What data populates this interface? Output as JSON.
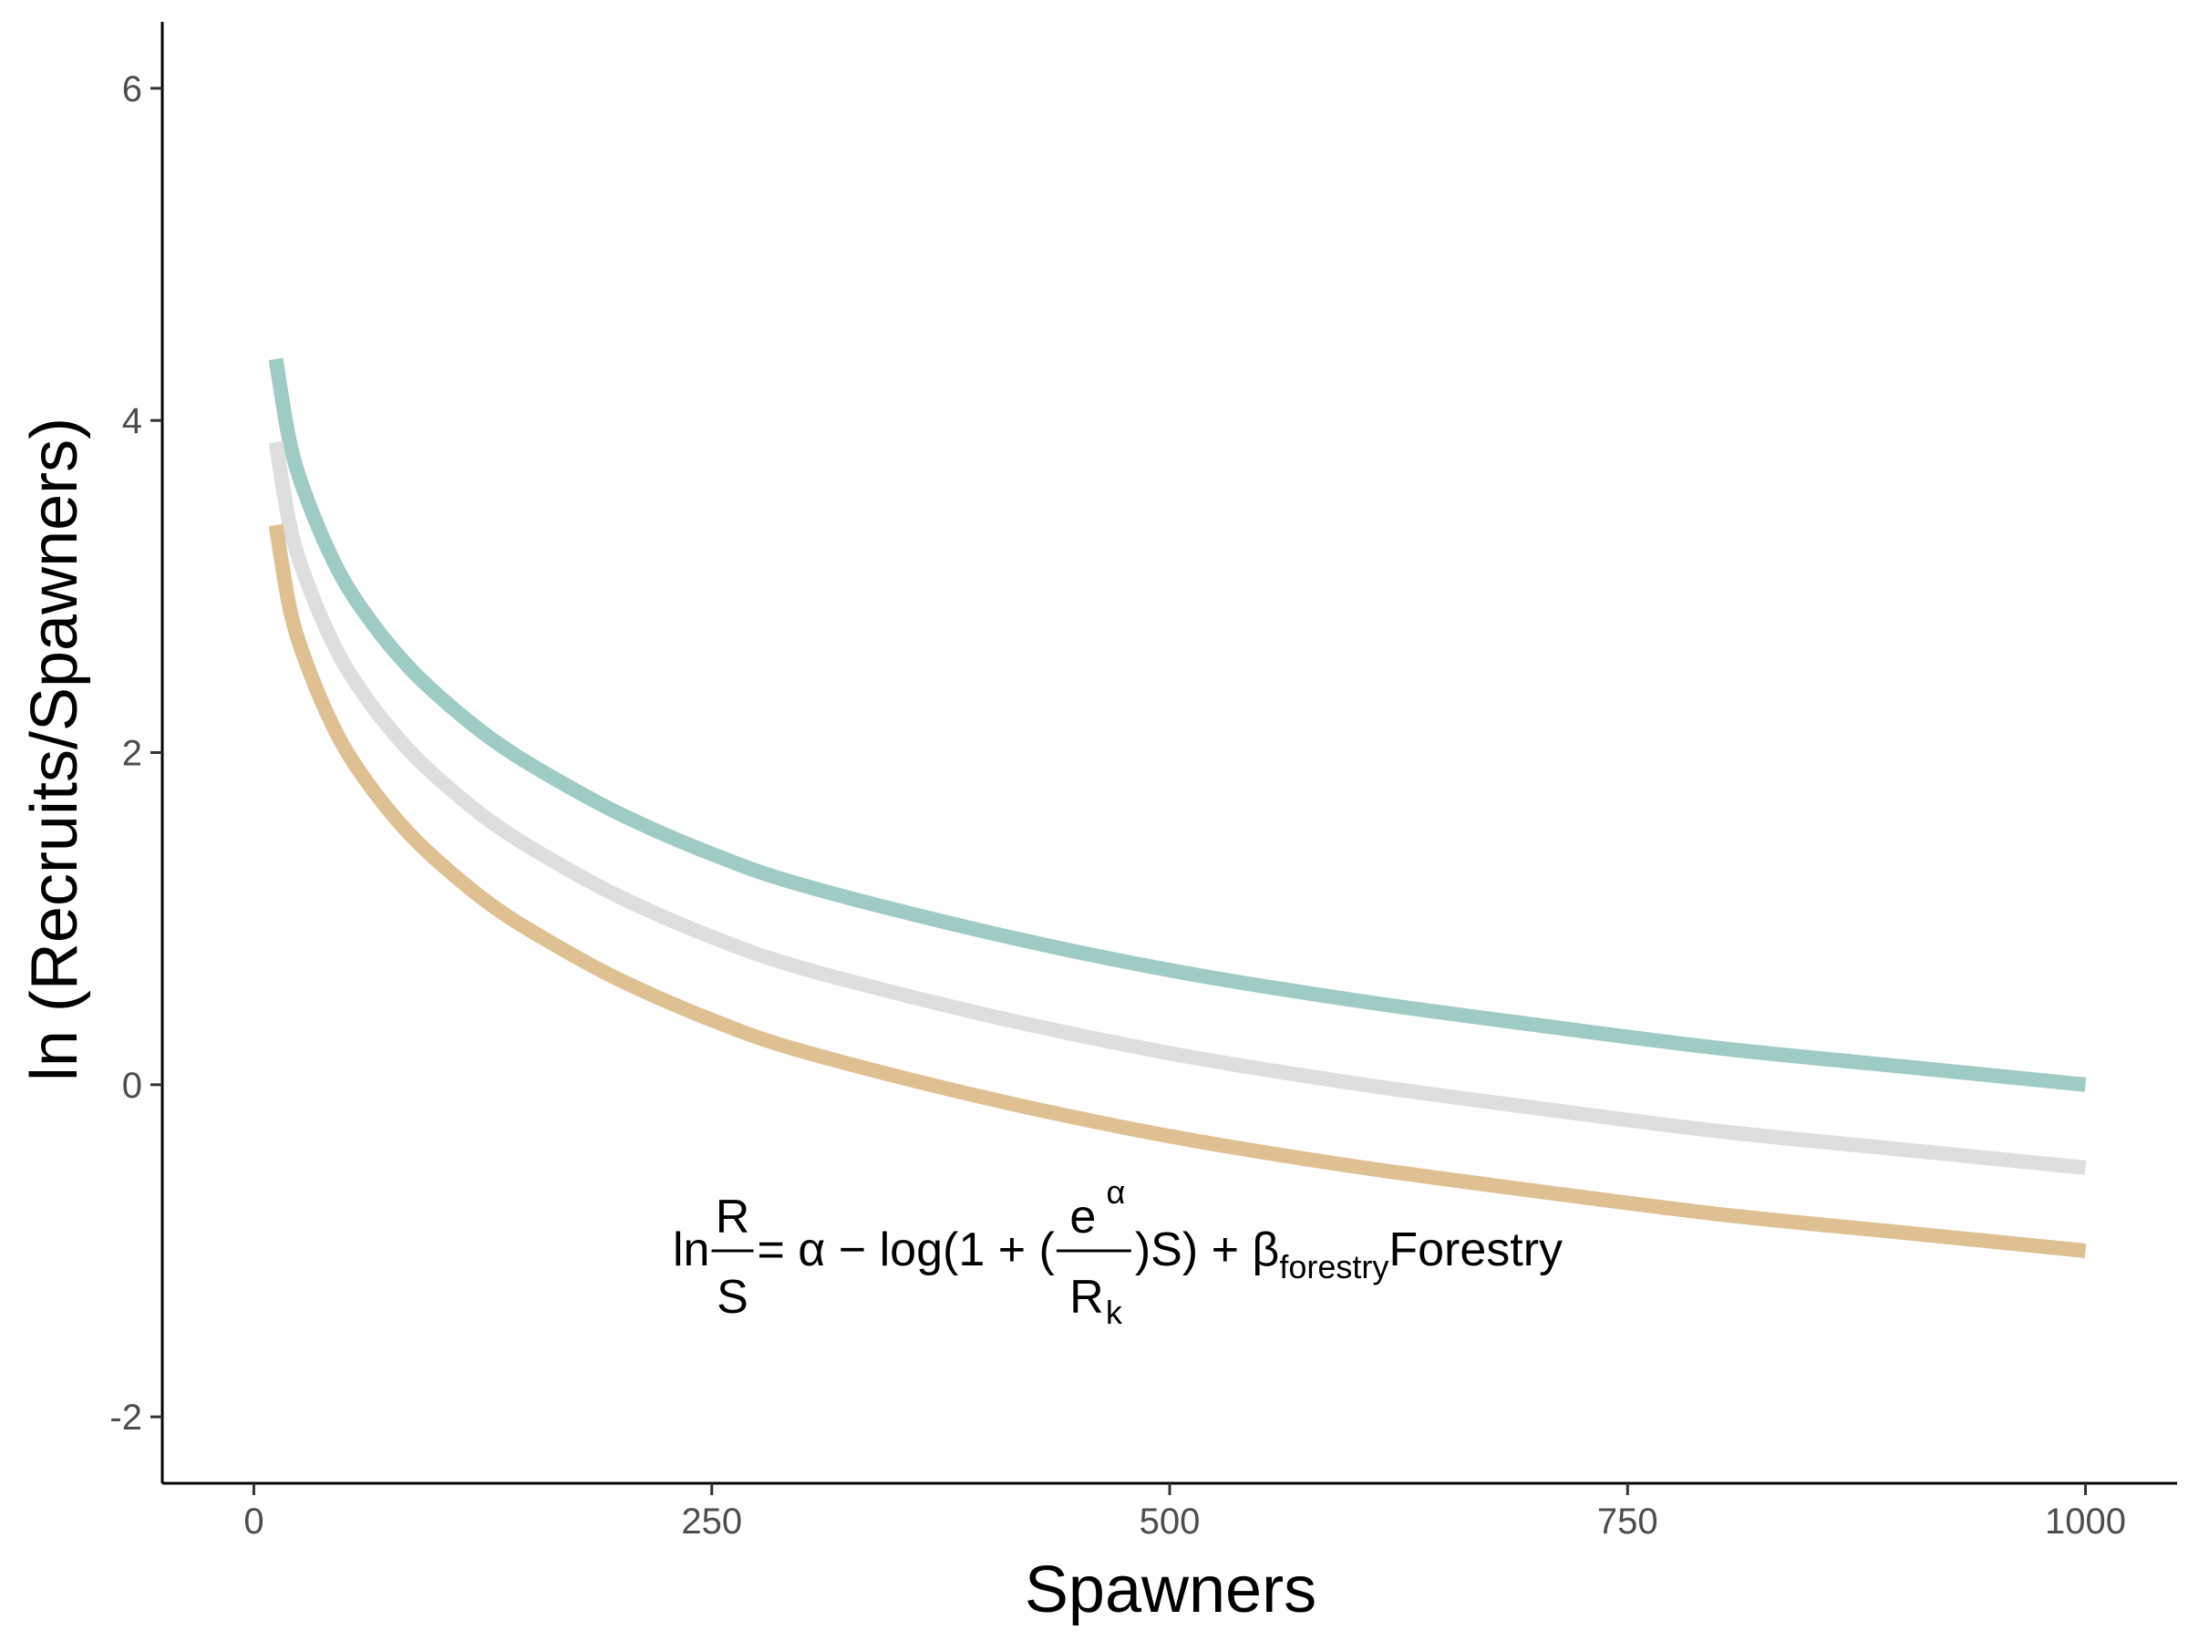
{
  "chart_data": {
    "type": "line",
    "xlabel": "Spawners",
    "ylabel": "ln (Recruits/Spawners)",
    "xlim": [
      -50,
      1050
    ],
    "ylim": [
      -2.4,
      6.4
    ],
    "xticks": [
      0,
      250,
      500,
      750,
      1000
    ],
    "xtick_labels": [
      "0",
      "250",
      "500",
      "750",
      "1000"
    ],
    "yticks": [
      -2,
      0,
      2,
      4,
      6
    ],
    "ytick_labels": [
      "-2",
      "0",
      "2",
      "4",
      "6"
    ],
    "grid": false,
    "legend": "none",
    "series": [
      {
        "color": "#9fcbc5",
        "x": [
          12,
          20,
          30,
          45,
          60,
          80,
          100,
          130,
          160,
          200,
          250,
          300,
          400,
          500,
          600,
          700,
          800,
          900,
          1000
        ],
        "values": [
          4.37,
          3.85,
          3.5,
          3.12,
          2.85,
          2.57,
          2.35,
          2.08,
          1.87,
          1.63,
          1.39,
          1.2,
          0.92,
          0.69,
          0.51,
          0.36,
          0.22,
          0.11,
          0.0
        ]
      },
      {
        "color": "#dedede",
        "x": [
          12,
          20,
          30,
          45,
          60,
          80,
          100,
          130,
          160,
          200,
          250,
          300,
          400,
          500,
          600,
          700,
          800,
          900,
          1000
        ],
        "values": [
          3.87,
          3.35,
          3.0,
          2.62,
          2.35,
          2.07,
          1.85,
          1.58,
          1.37,
          1.13,
          0.89,
          0.7,
          0.42,
          0.19,
          0.01,
          -0.14,
          -0.28,
          -0.39,
          -0.5
        ]
      },
      {
        "color": "#dfc092",
        "x": [
          12,
          20,
          30,
          45,
          60,
          80,
          100,
          130,
          160,
          200,
          250,
          300,
          400,
          500,
          600,
          700,
          800,
          900,
          1000
        ],
        "values": [
          3.37,
          2.85,
          2.5,
          2.12,
          1.85,
          1.57,
          1.35,
          1.08,
          0.87,
          0.63,
          0.39,
          0.2,
          -0.08,
          -0.31,
          -0.49,
          -0.64,
          -0.78,
          -0.89,
          -1.0
        ]
      }
    ],
    "annotation": {
      "x": 500,
      "y": -1.0,
      "ln": "ln",
      "frac_num": "R",
      "frac_den": "S",
      "part1": " = α − log(1 + (",
      "inner_num": "e",
      "inner_num_sup": "α",
      "inner_den": "R",
      "inner_den_sub": "k",
      "part2": ")S) + β",
      "beta_sub": "forestry",
      "part3": "Forestry"
    }
  }
}
